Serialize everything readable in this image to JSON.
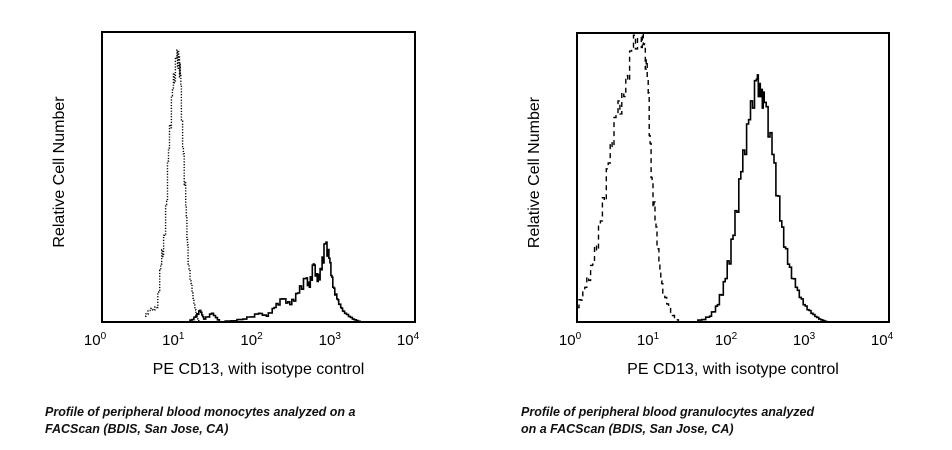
{
  "chart_data": [
    {
      "type": "line",
      "title": "",
      "xlabel": "PE CD13, with isotype control",
      "ylabel": "Relative Cell Number",
      "xscale": "log",
      "xlim": [
        1,
        10000
      ],
      "ylim": [
        0,
        100
      ],
      "xticks": [
        {
          "base": "10",
          "exp": "0"
        },
        {
          "base": "10",
          "exp": "1"
        },
        {
          "base": "10",
          "exp": "2"
        },
        {
          "base": "10",
          "exp": "3"
        },
        {
          "base": "10",
          "exp": "4"
        }
      ],
      "caption": [
        "Profile of peripheral blood monocytes analyzed on a",
        "FACScan (BDIS, San Jose, CA)"
      ],
      "series": [
        {
          "name": "isotype control",
          "style": "dotted",
          "log10x": [
            0.55,
            0.6,
            0.7,
            0.75,
            0.8,
            0.85,
            0.9,
            0.95,
            0.98,
            1.0,
            1.03,
            1.07,
            1.1,
            1.15,
            1.2,
            1.25
          ],
          "y": [
            2,
            4,
            5,
            20,
            30,
            60,
            80,
            91,
            90,
            85,
            60,
            40,
            20,
            10,
            2,
            0
          ]
        },
        {
          "name": "PE CD13",
          "style": "solid",
          "log10x": [
            1.1,
            1.2,
            1.25,
            1.3,
            1.4,
            1.5,
            1.8,
            2.0,
            2.1,
            2.2,
            2.3,
            2.4,
            2.5,
            2.6,
            2.65,
            2.7,
            2.75,
            2.8,
            2.85,
            2.9,
            2.95,
            3.0,
            3.05,
            3.1,
            3.2,
            3.3
          ],
          "y": [
            0,
            2,
            4,
            1,
            3,
            0,
            1,
            3,
            2,
            5,
            8,
            6,
            10,
            15,
            12,
            20,
            14,
            18,
            27,
            22,
            12,
            8,
            5,
            3,
            1,
            0
          ]
        }
      ]
    },
    {
      "type": "line",
      "title": "",
      "xlabel": "PE CD13, with isotype control",
      "ylabel": "Relative Cell Number",
      "xscale": "log",
      "xlim": [
        1,
        10000
      ],
      "ylim": [
        0,
        100
      ],
      "xticks": [
        {
          "base": "10",
          "exp": "0"
        },
        {
          "base": "10",
          "exp": "1"
        },
        {
          "base": "10",
          "exp": "2"
        },
        {
          "base": "10",
          "exp": "3"
        },
        {
          "base": "10",
          "exp": "4"
        }
      ],
      "caption": [
        "Profile of peripheral blood granulocytes analyzed",
        "on a FACScan (BDIS, San Jose, CA)"
      ],
      "series": [
        {
          "name": "isotype control",
          "style": "dashed",
          "log10x": [
            0,
            0.1,
            0.2,
            0.3,
            0.4,
            0.5,
            0.6,
            0.7,
            0.8,
            0.85,
            0.9,
            0.95,
            1.0,
            1.05,
            1.1,
            1.2,
            1.3
          ],
          "y": [
            5,
            12,
            20,
            35,
            55,
            72,
            78,
            95,
            100,
            96,
            85,
            50,
            35,
            20,
            10,
            3,
            0
          ]
        },
        {
          "name": "PE CD13",
          "style": "solid",
          "log10x": [
            1.5,
            1.7,
            1.8,
            1.9,
            2.0,
            2.1,
            2.2,
            2.3,
            2.35,
            2.4,
            2.5,
            2.6,
            2.7,
            2.8,
            2.9,
            3.0,
            3.1,
            3.2
          ],
          "y": [
            0,
            2,
            6,
            15,
            30,
            52,
            70,
            84,
            78,
            76,
            58,
            35,
            20,
            12,
            6,
            3,
            1,
            0
          ]
        }
      ]
    }
  ]
}
